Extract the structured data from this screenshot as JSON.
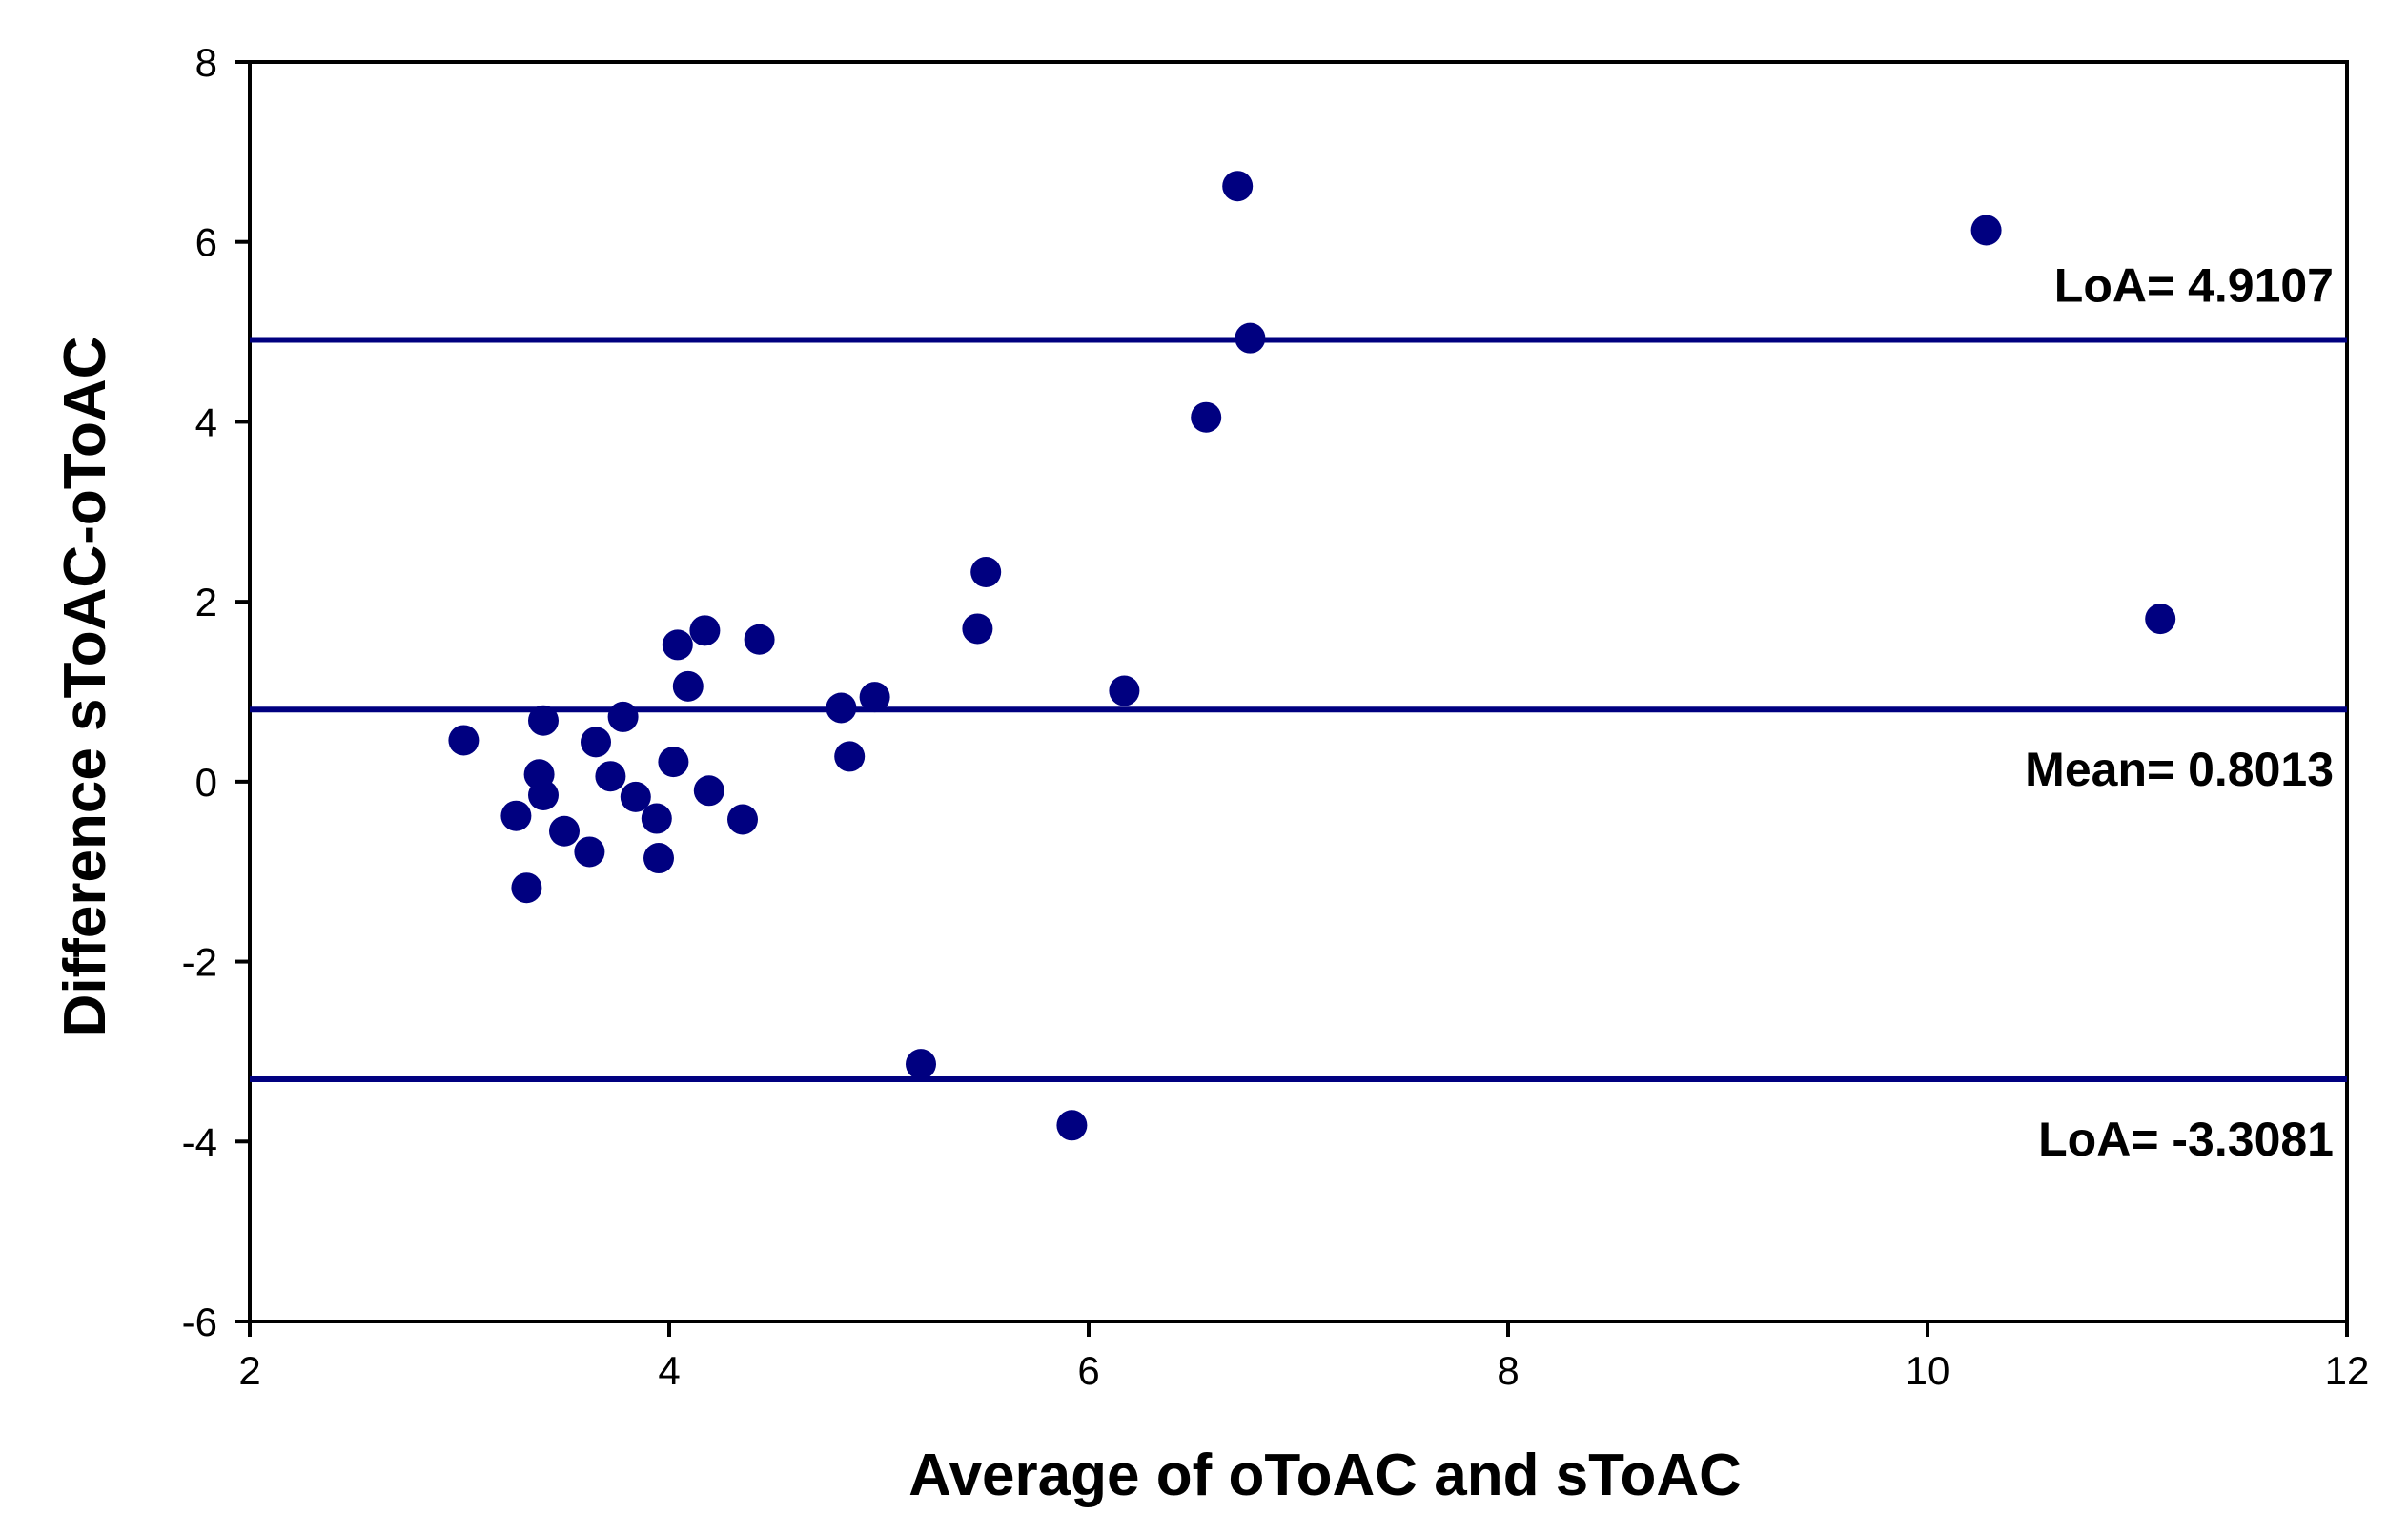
{
  "chart_data": {
    "type": "scatter",
    "title": "",
    "xlabel": "Average of oToAC and sToAC",
    "ylabel": "Difference sToAC-oToAC",
    "xlim": [
      2,
      12
    ],
    "ylim": [
      -6,
      8
    ],
    "xticks": [
      2,
      4,
      6,
      8,
      10,
      12
    ],
    "yticks": [
      -6,
      -4,
      -2,
      0,
      2,
      4,
      6,
      8
    ],
    "grid": false,
    "colors": {
      "points": "#000080",
      "lines": "#000080",
      "axes": "#000000"
    },
    "reference_lines": [
      {
        "name": "upper-loa",
        "y": 4.9107,
        "label": "LoA= 4.9107"
      },
      {
        "name": "mean",
        "y": 0.8013,
        "label": "Mean= 0.8013"
      },
      {
        "name": "lower-loa",
        "y": -3.3081,
        "label": "LoA= -3.3081"
      }
    ],
    "series": [
      {
        "name": "differences",
        "points": [
          [
            3.02,
            0.46
          ],
          [
            3.27,
            -0.38
          ],
          [
            3.32,
            -1.18
          ],
          [
            3.38,
            0.08
          ],
          [
            3.4,
            -0.15
          ],
          [
            3.4,
            0.68
          ],
          [
            3.5,
            -0.55
          ],
          [
            3.62,
            -0.78
          ],
          [
            3.65,
            0.44
          ],
          [
            3.72,
            0.06
          ],
          [
            3.78,
            0.72
          ],
          [
            3.84,
            -0.17
          ],
          [
            3.94,
            -0.41
          ],
          [
            3.95,
            -0.85
          ],
          [
            4.02,
            0.22
          ],
          [
            4.04,
            1.52
          ],
          [
            4.09,
            1.06
          ],
          [
            4.17,
            1.68
          ],
          [
            4.19,
            -0.1
          ],
          [
            4.35,
            -0.42
          ],
          [
            4.43,
            1.58
          ],
          [
            4.82,
            0.82
          ],
          [
            4.86,
            0.28
          ],
          [
            4.98,
            0.94
          ],
          [
            5.2,
            -3.14
          ],
          [
            5.47,
            1.7
          ],
          [
            5.51,
            2.33
          ],
          [
            5.92,
            -3.82
          ],
          [
            6.17,
            1.01
          ],
          [
            6.56,
            4.05
          ],
          [
            6.71,
            6.62
          ],
          [
            6.77,
            4.93
          ],
          [
            10.28,
            6.13
          ],
          [
            11.11,
            1.81
          ]
        ]
      }
    ]
  }
}
